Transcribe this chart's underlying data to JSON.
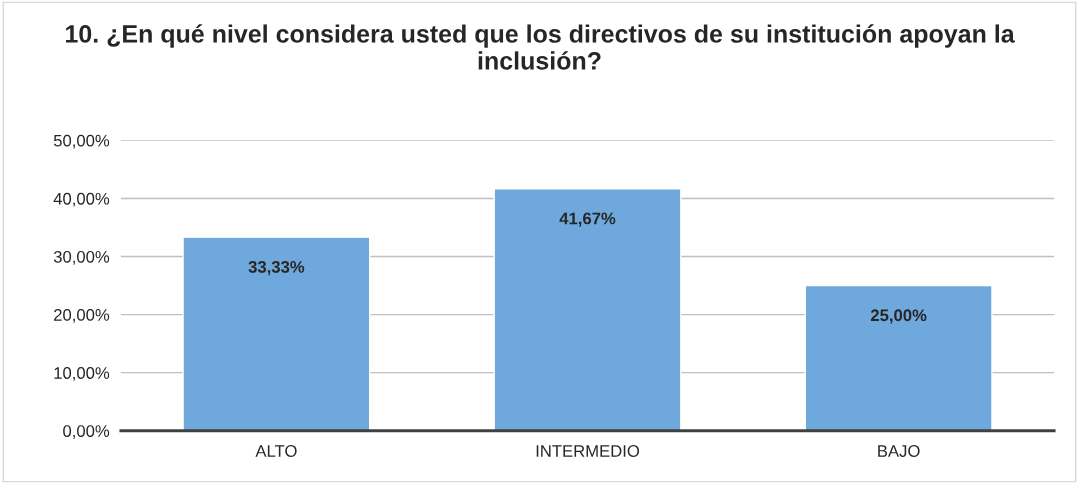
{
  "chart_data": {
    "type": "bar",
    "title": "10. ¿En qué nivel considera usted que los directivos de su institución apoyan la inclusión?",
    "categories": [
      "ALTO",
      "INTERMEDIO",
      "BAJO"
    ],
    "values": [
      33.33,
      41.67,
      25.0
    ],
    "value_labels": [
      "33,33%",
      "41,67%",
      "25,00%"
    ],
    "color": "#6fa8dc",
    "ylim": [
      0,
      50
    ],
    "yticks": [
      {
        "value": 0,
        "label": "0,00%"
      },
      {
        "value": 10,
        "label": "10,00%"
      },
      {
        "value": 20,
        "label": "20,00%"
      },
      {
        "value": 30,
        "label": "30,00%"
      },
      {
        "value": 40,
        "label": "40,00%"
      },
      {
        "value": 50,
        "label": "50,00%"
      }
    ],
    "grid": "y"
  }
}
